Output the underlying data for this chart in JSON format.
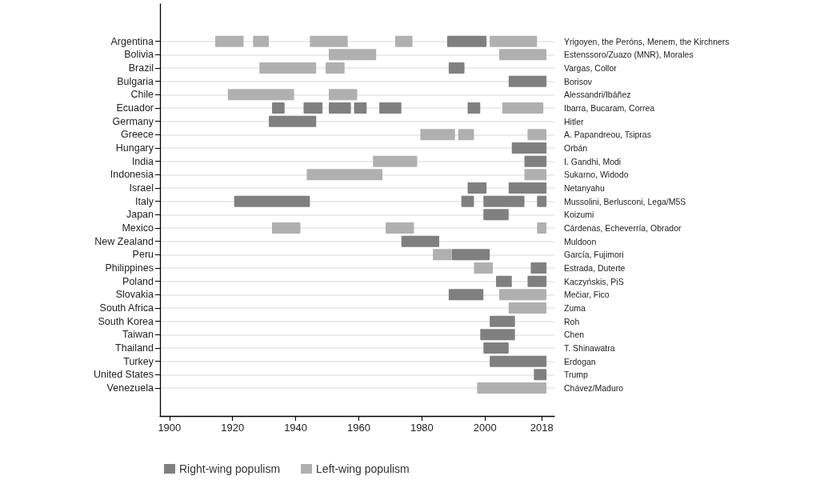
{
  "chart_data": {
    "type": "bar",
    "orientation": "horizontal",
    "categories": [
      "Argentina",
      "Bolivia",
      "Brazil",
      "Bulgaria",
      "Chile",
      "Ecuador",
      "Germany",
      "Greece",
      "Hungary",
      "India",
      "Indonesia",
      "Israel",
      "Italy",
      "Japan",
      "Mexico",
      "New Zealand",
      "Peru",
      "Philippines",
      "Poland",
      "Slovakia",
      "South Africa",
      "South Korea",
      "Taiwan",
      "Thailand",
      "Turkey",
      "United States",
      "Venezuela"
    ],
    "y2_categories": [
      "Yrigoyen, the Peróns, Menem, the Kirchners",
      "Estenssoro/Zuazo (MNR), Morales",
      "Vargas, Collor",
      "Borisov",
      "Alessandri/Ibáñez",
      "Ibarra, Bucaram, Correa",
      "Hitler",
      "A. Papandreou, Tsipras",
      "Orbán",
      "I. Gandhi, Modi",
      "Sukarno, Widodo",
      "Netanyahu",
      "Mussolini, Berlusconi, Lega/M5S",
      "Koizumi",
      "Cárdenas, Echeverría, Obrador",
      "Muldoon",
      "García, Fujimori",
      "Estrada, Duterte",
      "Kaczyńskis, PiS",
      "Mečiar, Fico",
      "Zuma",
      "Roh",
      "Chen",
      "T. Shinawatra",
      "Erdogan",
      "Trump",
      "Chávez/Maduro"
    ],
    "series": [
      {
        "name": "Right-wing populism",
        "color": "#808080",
        "base": [
          1988,
          null,
          1988.5,
          2007.5,
          null,
          1932.5,
          1931.5,
          null,
          2008.5,
          2012.5,
          null,
          1994.5,
          1920.5,
          1999.5,
          null,
          1973.5,
          1989.5,
          2014.5,
          2003.5,
          1988.5,
          null,
          2001.5,
          1998.5,
          1999.5,
          2001.5,
          2015.5,
          null
        ],
        "values": [
          12.5,
          null,
          5,
          12,
          null,
          4,
          15,
          null,
          11,
          7,
          null,
          6,
          24,
          8,
          null,
          12,
          12,
          5,
          5,
          11,
          null,
          8,
          11,
          8,
          18,
          4,
          null
        ]
      },
      {
        "color": "#808080",
        "base": [
          null,
          null,
          null,
          null,
          null,
          1942.5,
          null,
          null,
          null,
          null,
          null,
          2007.5,
          1992.5,
          null,
          null,
          null,
          null,
          null,
          2013.5,
          null,
          null,
          null,
          null,
          null,
          null,
          null,
          null
        ],
        "values": [
          null,
          null,
          null,
          null,
          null,
          6,
          null,
          null,
          null,
          null,
          null,
          12,
          4,
          null,
          null,
          null,
          null,
          null,
          6,
          null,
          null,
          null,
          null,
          null,
          null,
          null,
          null
        ]
      },
      {
        "color": "#808080",
        "base": [
          null,
          null,
          null,
          null,
          null,
          1950.5,
          null,
          null,
          null,
          null,
          null,
          null,
          1999.5,
          null,
          null,
          null,
          null,
          null,
          null,
          null,
          null,
          null,
          null,
          null,
          null,
          null,
          null
        ],
        "values": [
          null,
          null,
          null,
          null,
          null,
          7,
          null,
          null,
          null,
          null,
          null,
          null,
          13,
          null,
          null,
          null,
          null,
          null,
          null,
          null,
          null,
          null,
          null,
          null,
          null,
          null,
          null
        ]
      },
      {
        "color": "#808080",
        "base": [
          null,
          null,
          null,
          null,
          null,
          1958.5,
          null,
          null,
          null,
          null,
          null,
          null,
          2016.5,
          null,
          null,
          null,
          null,
          null,
          null,
          null,
          null,
          null,
          null,
          null,
          null,
          null,
          null
        ],
        "values": [
          null,
          null,
          null,
          null,
          null,
          4,
          null,
          null,
          null,
          null,
          null,
          null,
          3,
          null,
          null,
          null,
          null,
          null,
          null,
          null,
          null,
          null,
          null,
          null,
          null,
          null,
          null
        ]
      },
      {
        "color": "#808080",
        "base": [
          null,
          null,
          null,
          null,
          null,
          1966.5,
          null,
          null,
          null,
          null,
          null,
          null,
          null,
          null,
          null,
          null,
          null,
          null,
          null,
          null,
          null,
          null,
          null,
          null,
          null,
          null,
          null
        ],
        "values": [
          null,
          null,
          null,
          null,
          null,
          7,
          null,
          null,
          null,
          null,
          null,
          null,
          null,
          null,
          null,
          null,
          null,
          null,
          null,
          null,
          null,
          null,
          null,
          null,
          null,
          null,
          null
        ]
      },
      {
        "color": "#808080",
        "base": [
          null,
          null,
          null,
          null,
          null,
          1994.5,
          null,
          null,
          null,
          null,
          null,
          null,
          null,
          null,
          null,
          null,
          null,
          null,
          null,
          null,
          null,
          null,
          null,
          null,
          null,
          null,
          null
        ],
        "values": [
          null,
          null,
          null,
          null,
          null,
          4,
          null,
          null,
          null,
          null,
          null,
          null,
          null,
          null,
          null,
          null,
          null,
          null,
          null,
          null,
          null,
          null,
          null,
          null,
          null,
          null,
          null
        ]
      },
      {
        "name": "Left-wing populism",
        "color": "#b0b0b0",
        "base": [
          1914.5,
          1950.5,
          1928.5,
          null,
          1918.5,
          2005.5,
          null,
          1979.5,
          null,
          1964.5,
          1943.5,
          null,
          null,
          null,
          1932.5,
          null,
          1983.5,
          1996.5,
          null,
          2004.5,
          2007.5,
          null,
          null,
          null,
          null,
          null,
          1997.5
        ],
        "values": [
          9,
          15,
          18,
          null,
          21,
          13,
          null,
          11,
          null,
          14,
          24,
          null,
          null,
          null,
          9,
          null,
          6,
          6,
          null,
          15,
          12,
          null,
          null,
          null,
          null,
          null,
          22
        ]
      },
      {
        "color": "#b0b0b0",
        "base": [
          1926.5,
          2004.5,
          1949.5,
          null,
          1950.5,
          null,
          null,
          1991.5,
          null,
          null,
          2012.5,
          null,
          null,
          null,
          1968.5,
          null,
          null,
          null,
          null,
          null,
          null,
          null,
          null,
          null,
          null,
          null,
          null
        ],
        "values": [
          5,
          15,
          6,
          null,
          9,
          null,
          null,
          5,
          null,
          null,
          7,
          null,
          null,
          null,
          9,
          null,
          null,
          null,
          null,
          null,
          null,
          null,
          null,
          null,
          null,
          null,
          null
        ]
      },
      {
        "color": "#b0b0b0",
        "base": [
          1944.5,
          null,
          null,
          null,
          null,
          null,
          null,
          2013.5,
          null,
          null,
          null,
          null,
          null,
          null,
          2016.5,
          null,
          null,
          null,
          null,
          null,
          null,
          null,
          null,
          null,
          null,
          null,
          null
        ],
        "values": [
          12,
          null,
          null,
          null,
          null,
          null,
          null,
          6,
          null,
          null,
          null,
          null,
          null,
          null,
          3,
          null,
          null,
          null,
          null,
          null,
          null,
          null,
          null,
          null,
          null,
          null,
          null
        ]
      },
      {
        "color": "#b0b0b0",
        "base": [
          1971.5,
          null,
          null,
          null,
          null,
          null,
          null,
          null,
          null,
          null,
          null,
          null,
          null,
          null,
          null,
          null,
          null,
          null,
          null,
          null,
          null,
          null,
          null,
          null,
          null,
          null,
          null
        ],
        "values": [
          5.5,
          null,
          null,
          null,
          null,
          null,
          null,
          null,
          null,
          null,
          null,
          null,
          null,
          null,
          null,
          null,
          null,
          null,
          null,
          null,
          null,
          null,
          null,
          null,
          null,
          null,
          null
        ]
      },
      {
        "color": "#b0b0b0",
        "base": [
          2001.5,
          null,
          null,
          null,
          null,
          null,
          null,
          null,
          null,
          null,
          null,
          null,
          null,
          null,
          null,
          null,
          null,
          null,
          null,
          null,
          null,
          null,
          null,
          null,
          null,
          null,
          null
        ],
        "values": [
          15,
          null,
          null,
          null,
          null,
          null,
          null,
          null,
          null,
          null,
          null,
          null,
          null,
          null,
          null,
          null,
          null,
          null,
          null,
          null,
          null,
          null,
          null,
          null,
          null,
          null,
          null
        ]
      }
    ],
    "xlim": [
      1897,
      2022
    ],
    "xticks": [
      1900,
      1920,
      1940,
      1960,
      1980,
      2000,
      2018
    ],
    "grid": "y",
    "legend": "bottom"
  }
}
